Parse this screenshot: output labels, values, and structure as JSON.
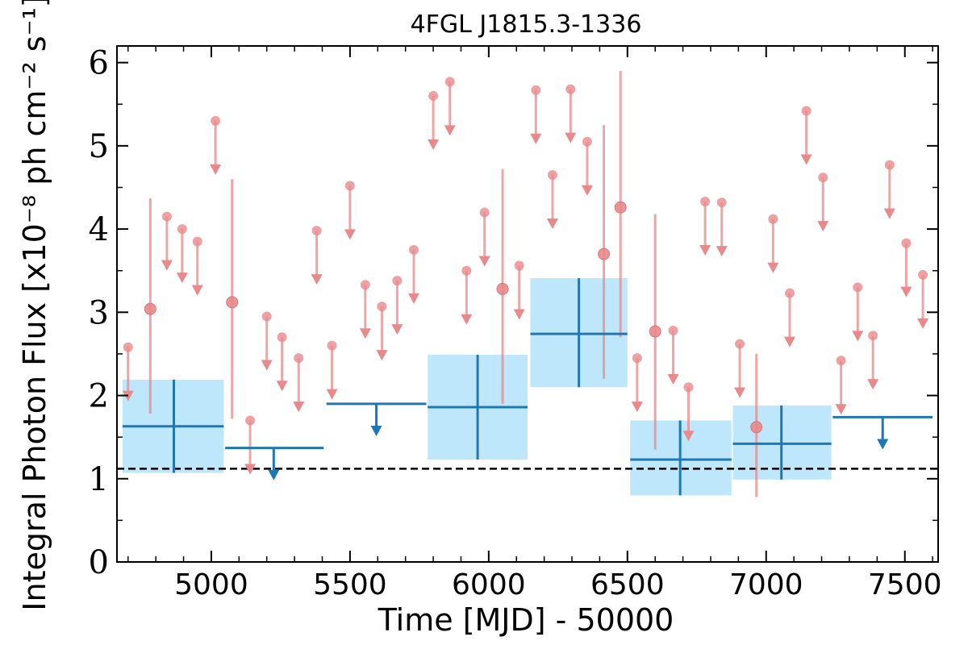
{
  "chart_data": {
    "type": "scatter",
    "title": "4FGL J1815.3-1336",
    "xlabel": "Time [MJD] - 50000",
    "ylabel": "Integral Photon Flux [x10⁻⁸ ph cm⁻² s⁻¹]",
    "xlim": [
      4660,
      7620
    ],
    "ylim": [
      0,
      6.2
    ],
    "x_ticks": [
      5000,
      5500,
      6000,
      6500,
      7000,
      7500
    ],
    "x_tick_labels": [
      "5000",
      "5500",
      "6000",
      "6500",
      "7000",
      "7500"
    ],
    "y_ticks": [
      0,
      1,
      2,
      3,
      4,
      5,
      6
    ],
    "y_tick_labels": [
      "0",
      "1",
      "2",
      "3",
      "4",
      "5",
      "6"
    ],
    "grid": false,
    "colors": {
      "short_bins": "#e8898b",
      "long_bins": "#1f77b4",
      "long_bins_fill": "#bfe7fb",
      "reference_line": "#000000"
    },
    "reference_line": {
      "y": 1.12,
      "style": "dashed"
    },
    "series": [
      {
        "bin": "short",
        "upper_limits": [
          {
            "x": 4700,
            "y": 2.58
          },
          {
            "x": 4840,
            "y": 4.15
          },
          {
            "x": 4895,
            "y": 4.0
          },
          {
            "x": 4950,
            "y": 3.85
          },
          {
            "x": 5015,
            "y": 5.3
          },
          {
            "x": 5140,
            "y": 1.7
          },
          {
            "x": 5200,
            "y": 2.95
          },
          {
            "x": 5255,
            "y": 2.7
          },
          {
            "x": 5315,
            "y": 2.45
          },
          {
            "x": 5380,
            "y": 3.98
          },
          {
            "x": 5435,
            "y": 2.6
          },
          {
            "x": 5500,
            "y": 4.52
          },
          {
            "x": 5555,
            "y": 3.33
          },
          {
            "x": 5615,
            "y": 3.07
          },
          {
            "x": 5670,
            "y": 3.38
          },
          {
            "x": 5730,
            "y": 3.75
          },
          {
            "x": 5800,
            "y": 5.6
          },
          {
            "x": 5860,
            "y": 5.77
          },
          {
            "x": 5920,
            "y": 3.5
          },
          {
            "x": 5985,
            "y": 4.2
          },
          {
            "x": 6110,
            "y": 3.56
          },
          {
            "x": 6170,
            "y": 5.67
          },
          {
            "x": 6230,
            "y": 4.65
          },
          {
            "x": 6295,
            "y": 5.68
          },
          {
            "x": 6355,
            "y": 5.05
          },
          {
            "x": 6535,
            "y": 2.45
          },
          {
            "x": 6665,
            "y": 2.78
          },
          {
            "x": 6720,
            "y": 2.1
          },
          {
            "x": 6780,
            "y": 4.33
          },
          {
            "x": 6840,
            "y": 4.32
          },
          {
            "x": 6905,
            "y": 2.62
          },
          {
            "x": 7025,
            "y": 4.12
          },
          {
            "x": 7085,
            "y": 3.23
          },
          {
            "x": 7145,
            "y": 5.42
          },
          {
            "x": 7205,
            "y": 4.62
          },
          {
            "x": 7270,
            "y": 2.42
          },
          {
            "x": 7330,
            "y": 3.3
          },
          {
            "x": 7385,
            "y": 2.72
          },
          {
            "x": 7445,
            "y": 4.77
          },
          {
            "x": 7505,
            "y": 3.83
          },
          {
            "x": 7565,
            "y": 3.45
          }
        ],
        "detections": [
          {
            "x": 4780,
            "y": 3.04,
            "err_low": 1.78,
            "err_high": 4.37
          },
          {
            "x": 5075,
            "y": 3.12,
            "err_low": 1.72,
            "err_high": 4.6
          },
          {
            "x": 6050,
            "y": 3.28,
            "err_low": 1.9,
            "err_high": 4.72
          },
          {
            "x": 6415,
            "y": 3.7,
            "err_low": 2.2,
            "err_high": 5.25
          },
          {
            "x": 6475,
            "y": 4.26,
            "err_low": 2.7,
            "err_high": 5.9
          },
          {
            "x": 6600,
            "y": 2.77,
            "err_low": 1.35,
            "err_high": 4.18
          },
          {
            "x": 6965,
            "y": 1.62,
            "err_low": 0.78,
            "err_high": 2.5
          }
        ]
      },
      {
        "bin": "long",
        "detections": [
          {
            "x": 4865,
            "x_low": 4680,
            "x_high": 5045,
            "y": 1.63,
            "y_low": 1.07,
            "y_high": 2.19
          },
          {
            "x": 5960,
            "x_low": 5780,
            "x_high": 6140,
            "y": 1.86,
            "y_low": 1.23,
            "y_high": 2.49
          },
          {
            "x": 6325,
            "x_low": 6150,
            "x_high": 6500,
            "y": 2.74,
            "y_low": 2.1,
            "y_high": 3.41
          },
          {
            "x": 6690,
            "x_low": 6510,
            "x_high": 6875,
            "y": 1.23,
            "y_low": 0.8,
            "y_high": 1.7
          },
          {
            "x": 7055,
            "x_low": 6880,
            "x_high": 7235,
            "y": 1.42,
            "y_low": 0.99,
            "y_high": 1.88
          }
        ],
        "upper_limits": [
          {
            "x": 5225,
            "x_low": 5050,
            "x_high": 5405,
            "y": 1.37
          },
          {
            "x": 5595,
            "x_low": 5415,
            "x_high": 5775,
            "y": 1.9
          },
          {
            "x": 7420,
            "x_low": 7240,
            "x_high": 7600,
            "y": 1.74
          }
        ]
      }
    ]
  }
}
